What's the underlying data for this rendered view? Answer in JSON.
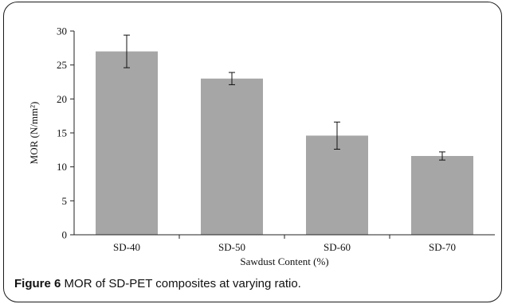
{
  "chart_data": {
    "type": "bar",
    "categories": [
      "SD-40",
      "SD-50",
      "SD-60",
      "SD-70"
    ],
    "values": [
      27.0,
      23.0,
      14.6,
      11.6
    ],
    "error": [
      2.4,
      0.9,
      2.0,
      0.6
    ],
    "xlabel": "Sawdust Content (%)",
    "ylabel": "MOR (N/mm²)",
    "ylim": [
      0,
      30
    ],
    "yticks": [
      0,
      5,
      10,
      15,
      20,
      25,
      30
    ],
    "grid": false,
    "bar_color": "#a6a6a6"
  },
  "caption": {
    "label": "Figure 6",
    "text": "MOR of SD-PET composites at varying ratio."
  }
}
